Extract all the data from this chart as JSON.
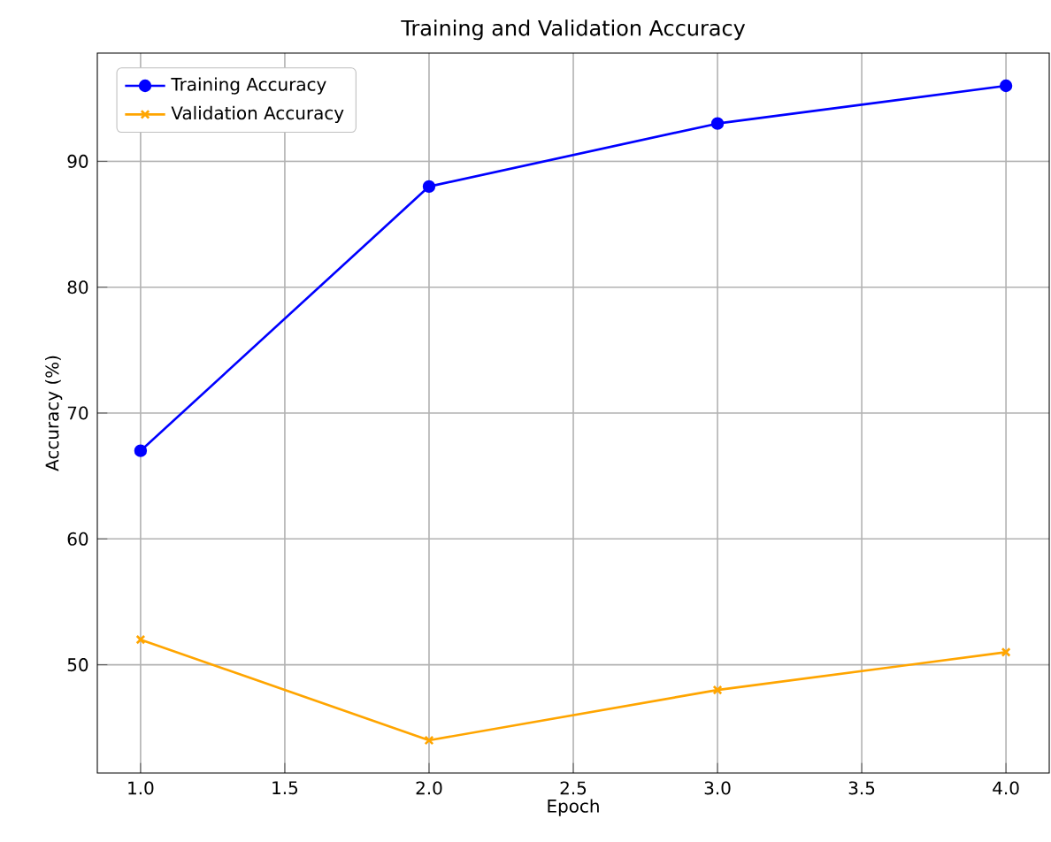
{
  "chart_data": {
    "type": "line",
    "title": "Training and Validation Accuracy",
    "xlabel": "Epoch",
    "ylabel": "Accuracy (%)",
    "x": [
      1,
      2,
      3,
      4
    ],
    "series": [
      {
        "name": "Training Accuracy",
        "color": "#0000ff",
        "marker": "circle",
        "values": [
          67,
          88,
          93,
          96
        ]
      },
      {
        "name": "Validation Accuracy",
        "color": "#ffa500",
        "marker": "cross",
        "values": [
          52,
          44,
          48,
          51
        ]
      }
    ],
    "xlim": [
      0.85,
      4.15
    ],
    "ylim": [
      41.4,
      98.6
    ],
    "xticks": [
      {
        "value": 1,
        "label": "1.0"
      },
      {
        "value": 1.5,
        "label": "1.5"
      },
      {
        "value": 2,
        "label": "2.0"
      },
      {
        "value": 2.5,
        "label": "2.5"
      },
      {
        "value": 3,
        "label": "3.0"
      },
      {
        "value": 3.5,
        "label": "3.5"
      },
      {
        "value": 4,
        "label": "4.0"
      }
    ],
    "yticks": [
      50,
      60,
      70,
      80,
      90
    ],
    "grid": true,
    "legend": "top left"
  }
}
